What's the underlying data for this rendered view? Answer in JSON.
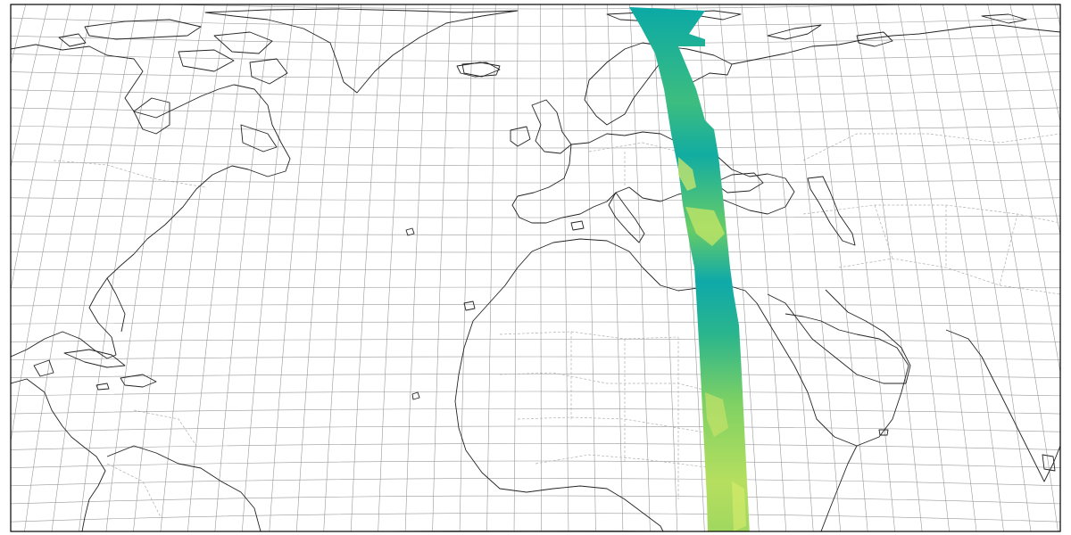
{
  "map": {
    "projection": "pseudocylindrical",
    "graticule": true,
    "frame_color": "#000000",
    "coastline_color": "#222222",
    "border_color": "#b0b0b0",
    "gridline_color": "#9a9a9a",
    "swath_colormap": [
      "#0aa5a8",
      "#26b38a",
      "#5cc86a",
      "#a9dc5c",
      "#e3ec6b"
    ],
    "swath_dominant_color": "#0db0a8"
  }
}
